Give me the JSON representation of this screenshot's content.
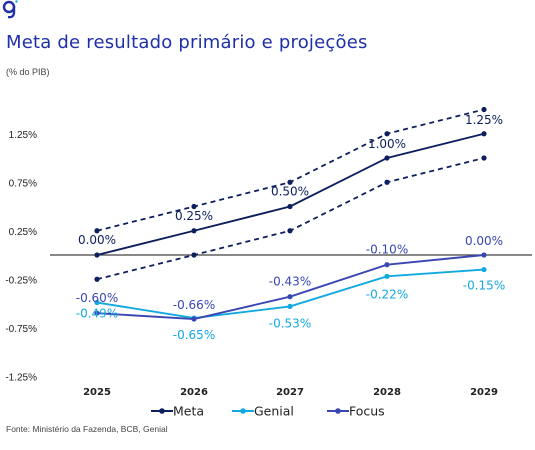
{
  "header": {
    "title": "Meta de resultado primário e projeções",
    "subtitle": "(% do PIB)"
  },
  "footer": {
    "source": "Fonte: Ministério da Fazenda, BCB, Genial"
  },
  "icons": {
    "logo": "genial-logo-icon"
  },
  "colors": {
    "meta": "#0d1f5c",
    "genial": "#12a9e0",
    "focus": "#3a47b3",
    "title": "#1f2fa8",
    "zero_line": "#404040"
  },
  "chart_data": {
    "type": "line",
    "categories": [
      "2025",
      "2026",
      "2027",
      "2028",
      "2029"
    ],
    "ylim": [
      -1.25,
      1.5
    ],
    "yticks": [
      1.25,
      0.75,
      0.25,
      -0.25,
      -0.75,
      -1.25
    ],
    "ytick_labels": [
      "1.25%",
      "0.75%",
      "0.25%",
      "-0.25%",
      "-0.75%",
      "-1.25%"
    ],
    "series": [
      {
        "name": "Meta",
        "key": "meta",
        "values": [
          0.0,
          0.25,
          0.5,
          1.0,
          1.25
        ],
        "labels": [
          "0.00%",
          "0.25%",
          "0.50%",
          "1.00%",
          "1.25%"
        ],
        "band_upper": [
          0.25,
          0.5,
          0.75,
          1.25,
          1.5
        ],
        "band_lower": [
          -0.25,
          0.0,
          0.25,
          0.75,
          1.0
        ]
      },
      {
        "name": "Genial",
        "key": "genial",
        "values": [
          -0.49,
          -0.65,
          -0.53,
          -0.22,
          -0.15
        ],
        "labels": [
          "-0.49%",
          "-0.65%",
          "-0.53%",
          "-0.22%",
          "-0.15%"
        ]
      },
      {
        "name": "Focus",
        "key": "focus",
        "values": [
          -0.6,
          -0.66,
          -0.43,
          -0.1,
          0.0
        ],
        "labels": [
          "-0.60%",
          "-0.66%",
          "-0.43%",
          "-0.10%",
          "0.00%"
        ]
      }
    ],
    "legend": {
      "placement": "bottom-center",
      "entries": [
        "Meta",
        "Genial",
        "Focus"
      ]
    },
    "grid": false
  }
}
